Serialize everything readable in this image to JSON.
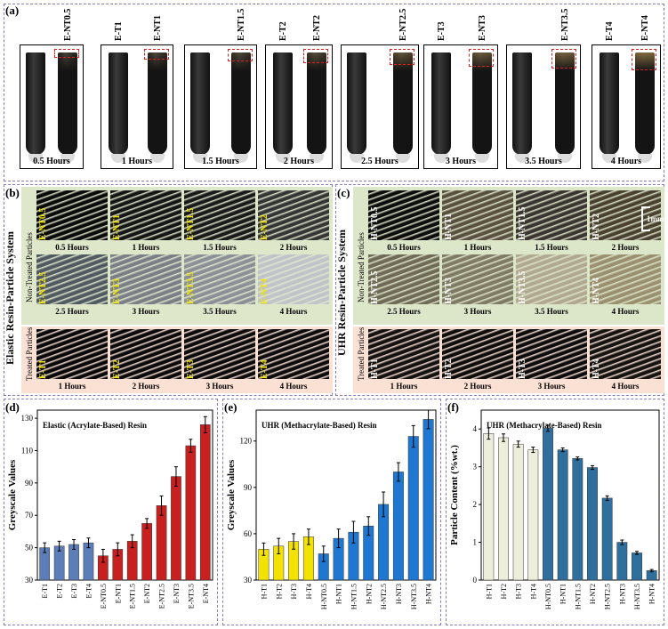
{
  "panel_a": {
    "label": "(a)",
    "groups": [
      {
        "labels": [
          "E-NT0.5"
        ],
        "hours": "0.5 Hours"
      },
      {
        "labels": [
          "E-T1",
          "E-NT1"
        ],
        "hours": "1 Hours"
      },
      {
        "labels": [
          "E-NT1.5"
        ],
        "hours": "1.5 Hours"
      },
      {
        "labels": [
          "E-T2",
          "E-NT2"
        ],
        "hours": "2 Hours"
      },
      {
        "labels": [
          "E-NT2.5"
        ],
        "hours": "2.5 Hours"
      },
      {
        "labels": [
          "E-T3",
          "E-NT3"
        ],
        "hours": "3 Hours"
      },
      {
        "labels": [
          "E-NT3.5"
        ],
        "hours": "3.5 Hours"
      },
      {
        "labels": [
          "E-T4",
          "E-NT4"
        ],
        "hours": "4 Hours"
      }
    ]
  },
  "panel_b": {
    "label": "(b)",
    "title": "Elastic Resin-Particle System",
    "nontreated": "Non-Treated Particles",
    "treated": "Treated Particles",
    "row1": [
      {
        "l": "E-NT0.5",
        "c": "0.5 Hours"
      },
      {
        "l": "E-NT1",
        "c": "1 Hours"
      },
      {
        "l": "E-NT1.5",
        "c": "1.5 Hours"
      },
      {
        "l": "E-NT2",
        "c": "2 Hours"
      }
    ],
    "row2": [
      {
        "l": "E-NT2.5",
        "c": "2.5 Hours"
      },
      {
        "l": "E-NT3",
        "c": "3 Hours"
      },
      {
        "l": "E-NT3.5",
        "c": "3.5 Hours"
      },
      {
        "l": "E-NT4",
        "c": "4 Hours"
      }
    ],
    "row3": [
      {
        "l": "E-T1",
        "c": "1 Hours"
      },
      {
        "l": "E-T2",
        "c": "2 Hours"
      },
      {
        "l": "E-T3",
        "c": "3 Hours"
      },
      {
        "l": "E-T4",
        "c": "4 Hours"
      }
    ]
  },
  "panel_c": {
    "label": "(c)",
    "title": "UHR Resin-Particle System",
    "nontreated": "Non-Treated Particles",
    "treated": "Treated Particles",
    "scale": "1mm",
    "row1": [
      {
        "l": "H-NT0.5",
        "c": "0.5 Hours"
      },
      {
        "l": "H-NT1",
        "c": "1 Hours"
      },
      {
        "l": "H-NT1.5",
        "c": "1.5 Hours"
      },
      {
        "l": "H-NT2",
        "c": "2 Hours"
      }
    ],
    "row2": [
      {
        "l": "H-NT2.5",
        "c": "2.5 Hours"
      },
      {
        "l": "H-NT3",
        "c": "3 Hours"
      },
      {
        "l": "H-NT3.5",
        "c": "3.5 Hours"
      },
      {
        "l": "H-NT4",
        "c": "4 Hours"
      }
    ],
    "row3": [
      {
        "l": "H-T1",
        "c": "1 Hours"
      },
      {
        "l": "H-T2",
        "c": "2 Hours"
      },
      {
        "l": "H-T3",
        "c": "3 Hours"
      },
      {
        "l": "H-T4",
        "c": "4 Hours"
      }
    ]
  },
  "chart_data": [
    {
      "panel": "(d)",
      "type": "bar",
      "title": "Elastic (Acrylate-Based) Resin",
      "ylabel": "Greyscale Values",
      "ylim": [
        30,
        135
      ],
      "yticks": [
        30,
        50,
        70,
        90,
        110,
        130
      ],
      "categories": [
        "E-T1",
        "E-T2",
        "E-T3",
        "E-T4",
        "E-NT0.5",
        "E-NT1",
        "E-NT1.5",
        "E-NT2",
        "E-NT2.5",
        "E-NT3",
        "E-NT3.5",
        "E-NT4"
      ],
      "values": [
        50,
        51,
        52,
        53,
        45,
        49,
        54,
        65,
        76,
        94,
        113,
        126
      ],
      "errors": [
        3,
        3,
        3,
        3,
        4,
        4,
        4,
        3,
        6,
        6,
        4,
        5
      ],
      "colors": [
        "#5b7db8",
        "#5b7db8",
        "#5b7db8",
        "#5b7db8",
        "#c8201e",
        "#c8201e",
        "#c8201e",
        "#c8201e",
        "#c8201e",
        "#c8201e",
        "#c8201e",
        "#c8201e"
      ]
    },
    {
      "panel": "(e)",
      "type": "bar",
      "title": "UHR (Methacrylate-Based) Resin",
      "ylabel": "Greyscale Values",
      "ylim": [
        30,
        140
      ],
      "yticks": [
        30,
        60,
        90,
        120
      ],
      "categories": [
        "H-T1",
        "H-T2",
        "H-T3",
        "H-T4",
        "H-NT0.5",
        "H-NT1",
        "H-NT1.5",
        "H-NT2",
        "H-NT2.5",
        "H-NT3",
        "H-NT3.5",
        "H-NT4"
      ],
      "values": [
        50,
        52,
        55,
        58,
        47,
        57,
        61,
        65,
        79,
        100,
        123,
        134
      ],
      "errors": [
        4,
        5,
        5,
        5,
        5,
        6,
        7,
        6,
        8,
        6,
        7,
        6
      ],
      "colors": [
        "#f3e200",
        "#f3e200",
        "#f3e200",
        "#f3e200",
        "#1e78d2",
        "#1e78d2",
        "#1e78d2",
        "#1e78d2",
        "#1e78d2",
        "#1e78d2",
        "#1e78d2",
        "#1e78d2"
      ]
    },
    {
      "panel": "(f)",
      "type": "bar",
      "title": "UHR (Methacrylate-Based) Resin",
      "ylabel": "Particle Content (%wt.)",
      "ylim": [
        0,
        4.5
      ],
      "yticks": [
        0,
        1,
        2,
        3,
        4
      ],
      "categories": [
        "H-T1",
        "H-T2",
        "H-T3",
        "H-T4",
        "H-NT0.5",
        "H-NT1",
        "H-NT1.5",
        "H-NT2",
        "H-NT2.5",
        "H-NT3",
        "H-NT3.5",
        "H-NT4"
      ],
      "values": [
        3.88,
        3.77,
        3.6,
        3.45,
        4.02,
        3.45,
        3.22,
        2.98,
        2.17,
        1.0,
        0.72,
        0.25
      ],
      "errors": [
        0.15,
        0.1,
        0.08,
        0.07,
        0.08,
        0.05,
        0.04,
        0.05,
        0.06,
        0.06,
        0.04,
        0.03
      ],
      "colors": [
        "#eeeedd",
        "#eeeedd",
        "#eeeedd",
        "#eeeedd",
        "#2e6f9e",
        "#2e6f9e",
        "#2e6f9e",
        "#2e6f9e",
        "#2e6f9e",
        "#2e6f9e",
        "#2e6f9e",
        "#2e6f9e"
      ]
    }
  ]
}
